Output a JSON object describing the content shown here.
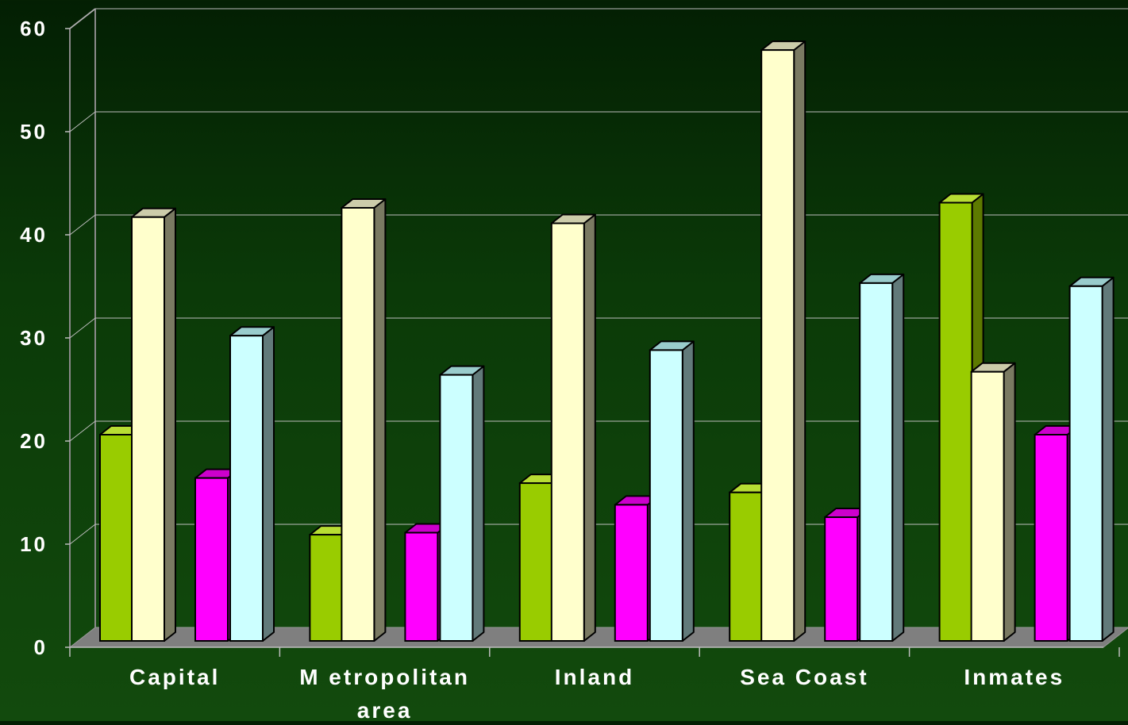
{
  "chart_data": {
    "type": "bar",
    "title": "",
    "xlabel": "",
    "ylabel": "",
    "categories": [
      "Capital",
      "Metropolitan area",
      "Inland",
      "Sea Coast",
      "Inmates"
    ],
    "category_lines": [
      [
        "Capital"
      ],
      [
        "M etropolitan",
        "area"
      ],
      [
        "Inland"
      ],
      [
        "Sea Coast"
      ],
      [
        "Inmates"
      ]
    ],
    "y_ticks": [
      "0",
      "10",
      "20",
      "30",
      "40",
      "50",
      "60"
    ],
    "ylim": [
      0,
      60
    ],
    "grid": true,
    "legend": "none",
    "series": [
      {
        "values": [
          20,
          10.3,
          15.3,
          14.4,
          42.5
        ],
        "color": "#99cc00",
        "side": "#5d7a00",
        "top": "#b8dd33"
      },
      {
        "values": [
          41.1,
          42,
          40.5,
          57.3,
          26.1
        ],
        "color": "#ffffcc",
        "side": "#7a7a62",
        "top": "#ccccaa"
      },
      {
        "values": [
          15.8,
          10.5,
          13.2,
          12,
          20
        ],
        "color": "#ff00ff",
        "side": "#990099",
        "top": "#cc00cc"
      },
      {
        "values": [
          29.6,
          25.8,
          28.2,
          34.7,
          34.4
        ],
        "color": "#ccffff",
        "side": "#627a7a",
        "top": "#99cccc"
      }
    ]
  }
}
